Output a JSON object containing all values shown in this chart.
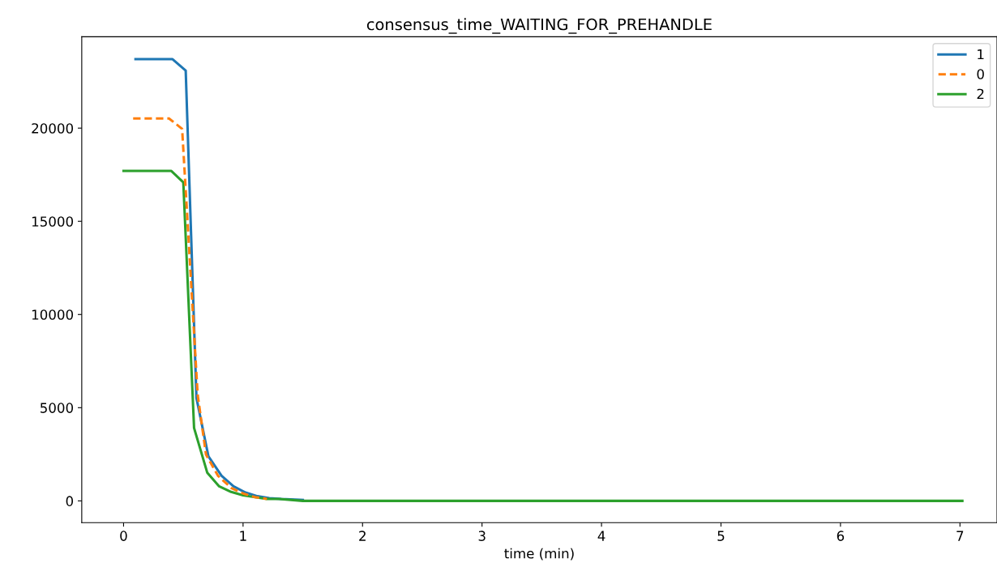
{
  "chart_data": {
    "type": "line",
    "title": "consensus_time_WAITING_FOR_PREHANDLE",
    "xlabel": "time (min)",
    "xlim": [
      -0.35,
      7.31
    ],
    "ylim": [
      -1170,
      24900
    ],
    "xticks": [
      0,
      1,
      2,
      3,
      4,
      5,
      6,
      7
    ],
    "yticks": [
      0,
      5000,
      10000,
      15000,
      20000
    ],
    "grid": false,
    "legend": "top right",
    "marker": "none",
    "series": [
      {
        "name": "1",
        "color": "#1f77b4",
        "line_style": "solid",
        "x": [
          0.1,
          0.41,
          0.52,
          0.61,
          0.71,
          0.82,
          0.92,
          1.02,
          1.12,
          1.22,
          1.32,
          1.5
        ],
        "values": [
          23700,
          23700,
          23090,
          5520,
          2390,
          1350,
          780,
          450,
          250,
          150,
          100,
          50
        ]
      },
      {
        "name": "0",
        "color": "#ff7f0e",
        "line_style": "dashed",
        "x": [
          0.08,
          0.38,
          0.49,
          0.62,
          0.69,
          0.79,
          0.9,
          1.0,
          1.1,
          1.2
        ],
        "values": [
          20520,
          20520,
          19960,
          5700,
          2480,
          1350,
          700,
          400,
          200,
          100
        ]
      },
      {
        "name": "2",
        "color": "#2ca02c",
        "line_style": "solid",
        "x": [
          0.0,
          0.4,
          0.5,
          0.59,
          0.7,
          0.8,
          0.9,
          1.0,
          1.1,
          1.2,
          1.3,
          1.5,
          2.0,
          3.0,
          5.0,
          7.02
        ],
        "values": [
          17700,
          17700,
          17090,
          3910,
          1520,
          780,
          480,
          300,
          200,
          100,
          100,
          0,
          0,
          0,
          0,
          0
        ]
      }
    ]
  }
}
